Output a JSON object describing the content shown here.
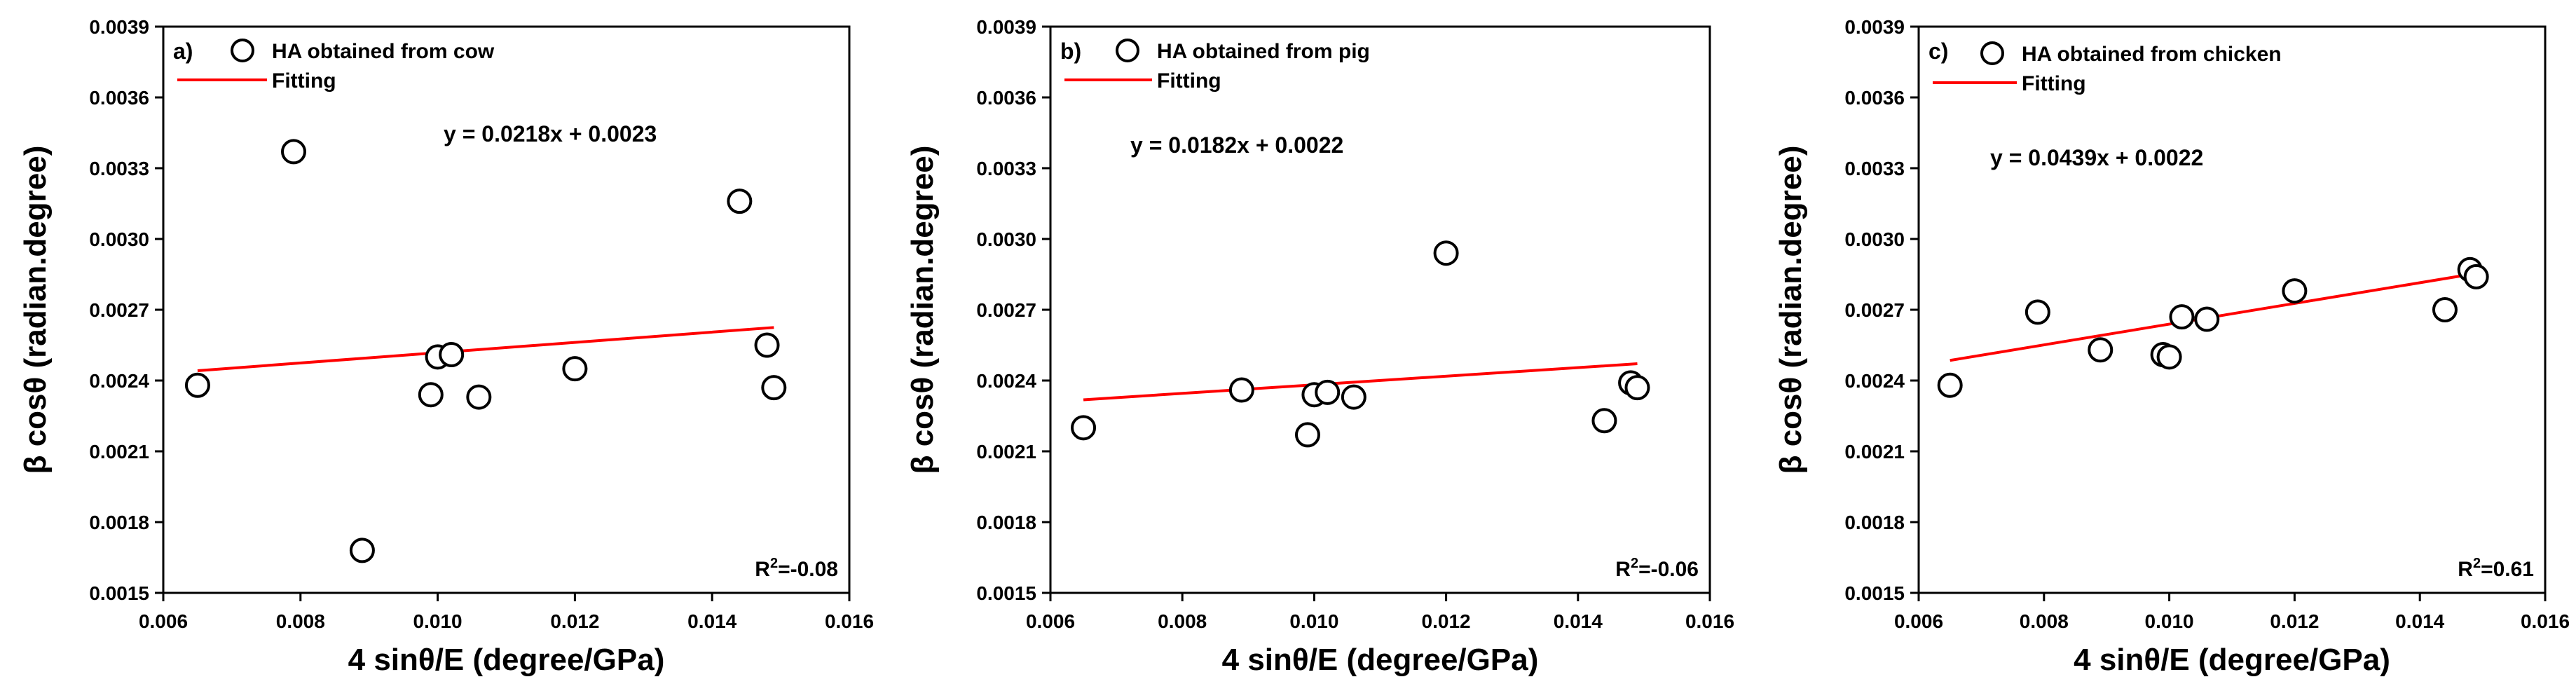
{
  "colors": {
    "fit": "#ff0000",
    "marker": "#000000",
    "axis": "#000000"
  },
  "chart_data": [
    {
      "type": "scatter",
      "panel_label": "a)",
      "title": "",
      "xlabel": "4 sinθ/E (degree/GPa)",
      "ylabel": "β cosθ (radian.degree)",
      "xlim": [
        0.006,
        0.016
      ],
      "ylim": [
        0.0015,
        0.0039
      ],
      "xticks": [
        "0.006",
        "0.008",
        "0.010",
        "0.012",
        "0.014",
        "0.016"
      ],
      "yticks": [
        "0.0015",
        "0.0018",
        "0.0021",
        "0.0024",
        "0.0027",
        "0.0030",
        "0.0033",
        "0.0036",
        "0.0039"
      ],
      "legend": [
        {
          "label": "HA obtained from cow",
          "kind": "marker"
        },
        {
          "label": "Fitting",
          "kind": "line"
        }
      ],
      "equation": "y = 0.0218x + 0.0023",
      "r2_prefix": "R",
      "r2_sup": "2",
      "r2_value": "=-0.08",
      "fit": {
        "slope": 0.0218,
        "intercept": 0.0023,
        "x_range": [
          0.0065,
          0.0149
        ]
      },
      "points": [
        {
          "x": 0.0065,
          "y": 0.00238
        },
        {
          "x": 0.0079,
          "y": 0.00337
        },
        {
          "x": 0.0089,
          "y": 0.00168
        },
        {
          "x": 0.0099,
          "y": 0.00234
        },
        {
          "x": 0.01,
          "y": 0.0025
        },
        {
          "x": 0.0102,
          "y": 0.00251
        },
        {
          "x": 0.0106,
          "y": 0.00233
        },
        {
          "x": 0.012,
          "y": 0.00245
        },
        {
          "x": 0.0144,
          "y": 0.00316
        },
        {
          "x": 0.0148,
          "y": 0.00255
        },
        {
          "x": 0.0149,
          "y": 0.00237
        }
      ]
    },
    {
      "type": "scatter",
      "panel_label": "b)",
      "title": "",
      "xlabel": "4 sinθ/E (degree/GPa)",
      "ylabel": "β cosθ (radian.degree)",
      "xlim": [
        0.006,
        0.016
      ],
      "ylim": [
        0.0015,
        0.0039
      ],
      "xticks": [
        "0.006",
        "0.008",
        "0.010",
        "0.012",
        "0.014",
        "0.016"
      ],
      "yticks": [
        "0.0015",
        "0.0018",
        "0.0021",
        "0.0024",
        "0.0027",
        "0.0030",
        "0.0033",
        "0.0036",
        "0.0039"
      ],
      "legend": [
        {
          "label": "HA obtained from pig",
          "kind": "marker"
        },
        {
          "label": "Fitting",
          "kind": "line"
        }
      ],
      "equation": "y = 0.0182x + 0.0022",
      "r2_prefix": "R",
      "r2_sup": "2",
      "r2_value": "=-0.06",
      "fit": {
        "slope": 0.0182,
        "intercept": 0.0022,
        "x_range": [
          0.0065,
          0.0149
        ]
      },
      "points": [
        {
          "x": 0.0065,
          "y": 0.0022
        },
        {
          "x": 0.0089,
          "y": 0.00236
        },
        {
          "x": 0.0099,
          "y": 0.00217
        },
        {
          "x": 0.01,
          "y": 0.00234
        },
        {
          "x": 0.0102,
          "y": 0.00235
        },
        {
          "x": 0.0106,
          "y": 0.00233
        },
        {
          "x": 0.012,
          "y": 0.00294
        },
        {
          "x": 0.0144,
          "y": 0.00223
        },
        {
          "x": 0.0148,
          "y": 0.00239
        },
        {
          "x": 0.0149,
          "y": 0.00237
        }
      ]
    },
    {
      "type": "scatter",
      "panel_label": "c)",
      "title": "",
      "xlabel": "4 sinθ/E (degree/GPa)",
      "ylabel": "β cosθ (radian.degree)",
      "xlim": [
        0.006,
        0.016
      ],
      "ylim": [
        0.0015,
        0.0039
      ],
      "xticks": [
        "0.006",
        "0.008",
        "0.010",
        "0.012",
        "0.014",
        "0.016"
      ],
      "yticks": [
        "0.0015",
        "0.0018",
        "0.0021",
        "0.0024",
        "0.0027",
        "0.0030",
        "0.0033",
        "0.0036",
        "0.0039"
      ],
      "legend": [
        {
          "label": "HA obtained from chicken",
          "kind": "marker"
        },
        {
          "label": "Fitting",
          "kind": "line"
        }
      ],
      "equation": "y = 0.0439x + 0.0022",
      "r2_prefix": "R",
      "r2_sup": "2",
      "r2_value": "=0.61",
      "fit": {
        "slope": 0.0439,
        "intercept": 0.0022,
        "x_range": [
          0.0065,
          0.0149
        ]
      },
      "points": [
        {
          "x": 0.0065,
          "y": 0.00238
        },
        {
          "x": 0.0079,
          "y": 0.00269
        },
        {
          "x": 0.0089,
          "y": 0.00253
        },
        {
          "x": 0.0099,
          "y": 0.00251
        },
        {
          "x": 0.01,
          "y": 0.0025
        },
        {
          "x": 0.0102,
          "y": 0.00267
        },
        {
          "x": 0.0106,
          "y": 0.00266
        },
        {
          "x": 0.012,
          "y": 0.00278
        },
        {
          "x": 0.0144,
          "y": 0.0027
        },
        {
          "x": 0.0148,
          "y": 0.00287
        },
        {
          "x": 0.0149,
          "y": 0.00284
        }
      ]
    }
  ]
}
